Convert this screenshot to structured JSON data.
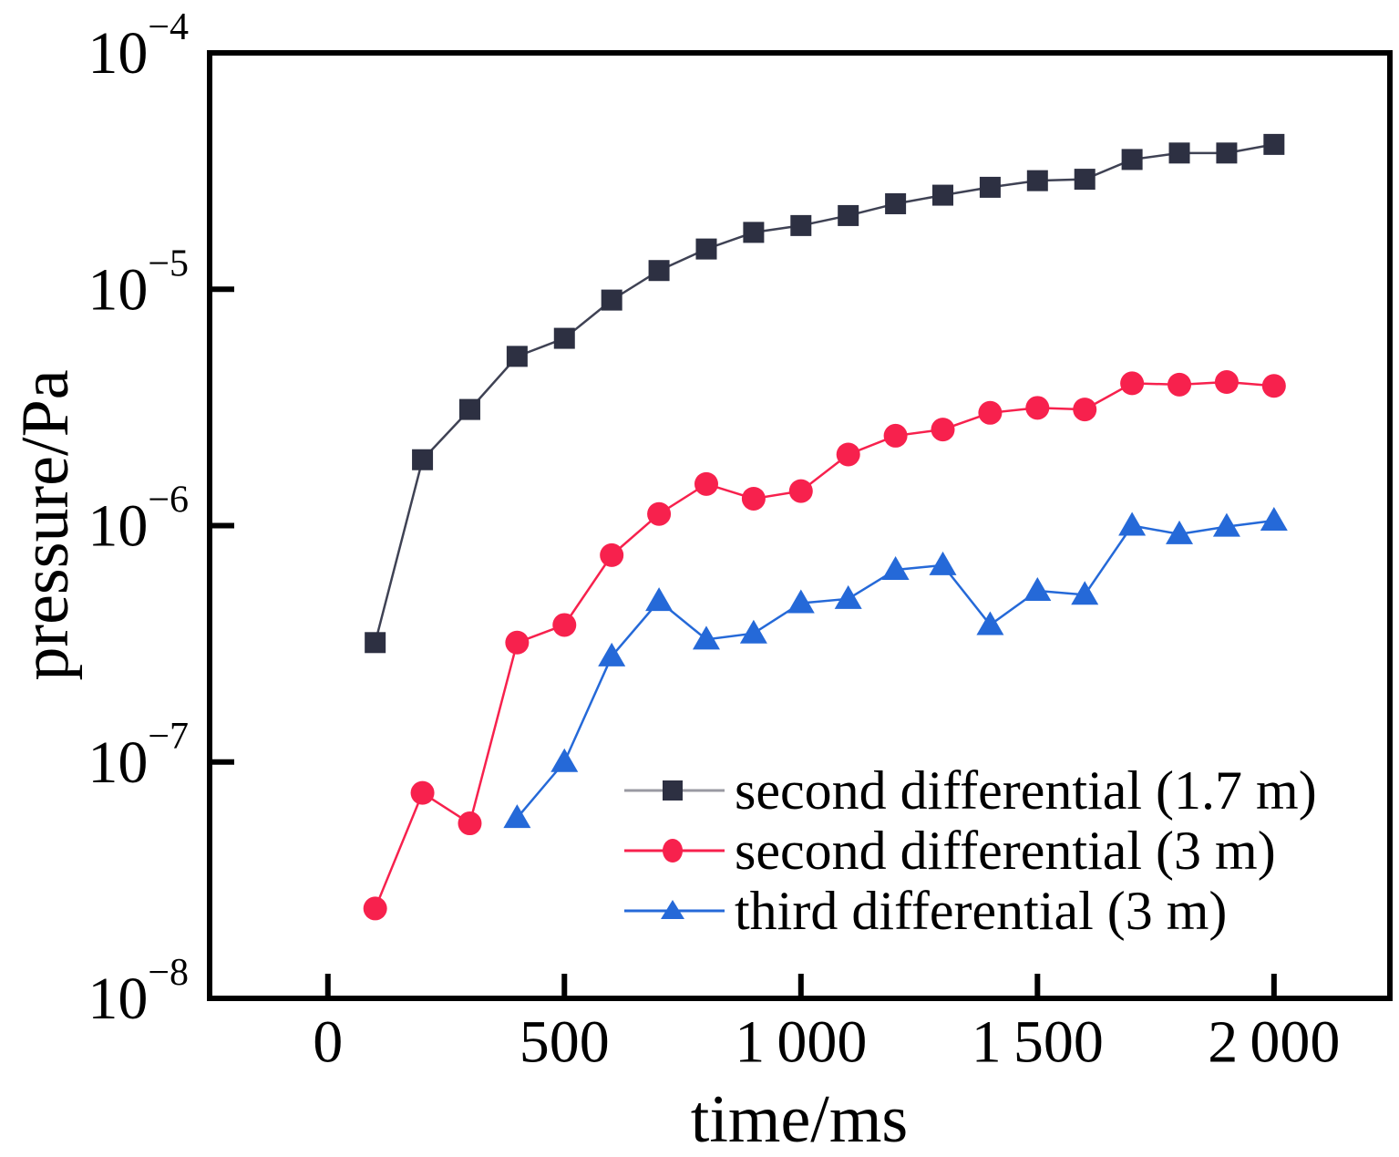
{
  "chart_data": {
    "type": "line",
    "title": "",
    "xlabel": "time/ms",
    "ylabel": "pressure/Pa",
    "grid": false,
    "legend_position": "inside-lower-right",
    "xlim": [
      -250,
      2245
    ],
    "ylim": [
      1e-08,
      0.0001
    ],
    "y_scale": "log",
    "x_ticks": [
      {
        "value": 0,
        "label": "0"
      },
      {
        "value": 500,
        "label": "500"
      },
      {
        "value": 1000,
        "label": "1 000"
      },
      {
        "value": 1500,
        "label": "1 500"
      },
      {
        "value": 2000,
        "label": "2 000"
      }
    ],
    "y_ticks": [
      {
        "exp": -4,
        "base": "10",
        "sup": "−4"
      },
      {
        "exp": -5,
        "base": "10",
        "sup": "−5"
      },
      {
        "exp": -6,
        "base": "10",
        "sup": "−6"
      },
      {
        "exp": -7,
        "base": "10",
        "sup": "−7"
      },
      {
        "exp": -8,
        "base": "10",
        "sup": "−8"
      }
    ],
    "series": [
      {
        "name": "second differential (1.7 m)",
        "marker": "square",
        "marker_color": "#2d3042",
        "line_color": "#3f4254",
        "legend_line_color": "#9a9aa2",
        "x": [
          100,
          200,
          300,
          400,
          500,
          600,
          700,
          800,
          900,
          1000,
          1100,
          1200,
          1300,
          1400,
          1500,
          1600,
          1700,
          1800,
          1900,
          2000
        ],
        "y": [
          3.2e-07,
          1.9e-06,
          3.1e-06,
          5.2e-06,
          6.2e-06,
          9e-06,
          1.2e-05,
          1.48e-05,
          1.74e-05,
          1.86e-05,
          2.05e-05,
          2.3e-05,
          2.5e-05,
          2.7e-05,
          2.88e-05,
          2.92e-05,
          3.54e-05,
          3.77e-05,
          3.77e-05,
          4.1e-05
        ]
      },
      {
        "name": "second differential (3 m)",
        "marker": "circle",
        "marker_color": "#f7214d",
        "line_color": "#f7214d",
        "legend_line_color": "#f7214d",
        "x": [
          100,
          200,
          300,
          400,
          500,
          600,
          700,
          800,
          900,
          1000,
          1100,
          1200,
          1300,
          1400,
          1500,
          1600,
          1700,
          1800,
          1900,
          2000
        ],
        "y": [
          2.4e-08,
          7.4e-08,
          5.5e-08,
          3.2e-07,
          3.8e-07,
          7.5e-07,
          1.12e-06,
          1.5e-06,
          1.3e-06,
          1.4e-06,
          2e-06,
          2.4e-06,
          2.55e-06,
          3e-06,
          3.15e-06,
          3.1e-06,
          4e-06,
          3.95e-06,
          4.05e-06,
          3.9e-06
        ]
      },
      {
        "name": "third differential (3 m)",
        "marker": "triangle",
        "marker_color": "#2569d8",
        "line_color": "#2569d8",
        "legend_line_color": "#2569d8",
        "x": [
          400,
          500,
          600,
          700,
          800,
          900,
          1000,
          1100,
          1200,
          1300,
          1400,
          1500,
          1600,
          1700,
          1800,
          1900,
          2000
        ],
        "y": [
          5.8e-08,
          1e-07,
          2.8e-07,
          4.8e-07,
          3.3e-07,
          3.5e-07,
          4.7e-07,
          4.9e-07,
          6.5e-07,
          6.8e-07,
          3.8e-07,
          5.3e-07,
          5.1e-07,
          1e-06,
          9.2e-07,
          9.9e-07,
          1.05e-06
        ]
      }
    ]
  }
}
